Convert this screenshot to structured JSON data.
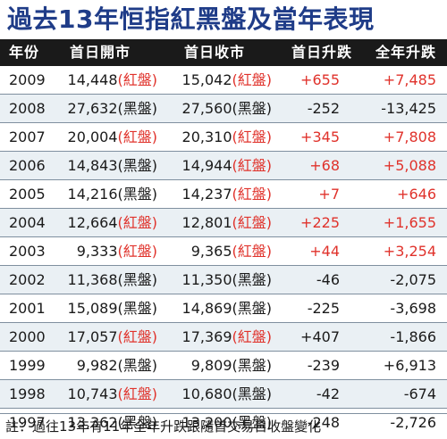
{
  "title": "過去13年恒指紅黑盤及當年表現",
  "headers": [
    "年份",
    "首日開市",
    "首日收市",
    "首日升跌",
    "全年升跌"
  ],
  "colors": {
    "red": "#e0322b",
    "title_blue": "#1f3c88",
    "header_bg": "#1a1a1a"
  },
  "rows": [
    {
      "year": "2009",
      "open": "14,448",
      "open_tag": "(紅盤)",
      "open_red": true,
      "close": "15,042",
      "close_tag": "(紅盤)",
      "close_red": true,
      "change": "+655",
      "change_red": true,
      "yearly": "+7,485",
      "yearly_red": true
    },
    {
      "year": "2008",
      "open": "27,632",
      "open_tag": "(黑盤)",
      "open_red": false,
      "close": "27,560",
      "close_tag": "(黑盤)",
      "close_red": false,
      "change": "-252",
      "change_red": false,
      "yearly": "-13,425",
      "yearly_red": false
    },
    {
      "year": "2007",
      "open": "20,004",
      "open_tag": "(紅盤)",
      "open_red": true,
      "close": "20,310",
      "close_tag": "(紅盤)",
      "close_red": true,
      "change": "+345",
      "change_red": true,
      "yearly": "+7,808",
      "yearly_red": true
    },
    {
      "year": "2006",
      "open": "14,843",
      "open_tag": "(黑盤)",
      "open_red": false,
      "close": "14,944",
      "close_tag": "(紅盤)",
      "close_red": true,
      "change": "+68",
      "change_red": true,
      "yearly": "+5,088",
      "yearly_red": true
    },
    {
      "year": "2005",
      "open": "14,216",
      "open_tag": "(黑盤)",
      "open_red": false,
      "close": "14,237",
      "close_tag": "(紅盤)",
      "close_red": true,
      "change": "+7",
      "change_red": true,
      "yearly": "+646",
      "yearly_red": true
    },
    {
      "year": "2004",
      "open": "12,664",
      "open_tag": "(紅盤)",
      "open_red": true,
      "close": "12,801",
      "close_tag": "(紅盤)",
      "close_red": true,
      "change": "+225",
      "change_red": true,
      "yearly": "+1,655",
      "yearly_red": true
    },
    {
      "year": "2003",
      "open": "9,333",
      "open_tag": "(紅盤)",
      "open_red": true,
      "close": "9,365",
      "close_tag": "(紅盤)",
      "close_red": true,
      "change": "+44",
      "change_red": true,
      "yearly": "+3,254",
      "yearly_red": true
    },
    {
      "year": "2002",
      "open": "11,368",
      "open_tag": "(黑盤)",
      "open_red": false,
      "close": "11,350",
      "close_tag": "(黑盤)",
      "close_red": false,
      "change": "-46",
      "change_red": false,
      "yearly": "-2,075",
      "yearly_red": false
    },
    {
      "year": "2001",
      "open": "15,089",
      "open_tag": "(黑盤)",
      "open_red": false,
      "close": "14,869",
      "close_tag": "(黑盤)",
      "close_red": false,
      "change": "-225",
      "change_red": false,
      "yearly": "-3,698",
      "yearly_red": false
    },
    {
      "year": "2000",
      "open": "17,057",
      "open_tag": "(紅盤)",
      "open_red": true,
      "close": "17,369",
      "close_tag": "(紅盤)",
      "close_red": true,
      "change": "+407",
      "change_red": false,
      "yearly": "-1,866",
      "yearly_red": false
    },
    {
      "year": "1999",
      "open": "9,982",
      "open_tag": "(黑盤)",
      "open_red": false,
      "close": "9,809",
      "close_tag": "(黑盤)",
      "close_red": false,
      "change": "-239",
      "change_red": false,
      "yearly": "+6,913",
      "yearly_red": false
    },
    {
      "year": "1998",
      "open": "10,743",
      "open_tag": "(紅盤)",
      "open_red": true,
      "close": "10,680",
      "close_tag": "(黑盤)",
      "close_red": false,
      "change": "-42",
      "change_red": false,
      "yearly": "-674",
      "yearly_red": false
    },
    {
      "year": "1997",
      "open": "13,362",
      "open_tag": "(黑盤)",
      "open_red": false,
      "close": "13,200",
      "close_tag": "(黑盤)",
      "close_red": false,
      "change": "-248",
      "change_red": false,
      "yearly": "-2,726",
      "yearly_red": false
    }
  ],
  "note": "註：過往13年有11年全年升跌跟隨首交易日收盤變化"
}
